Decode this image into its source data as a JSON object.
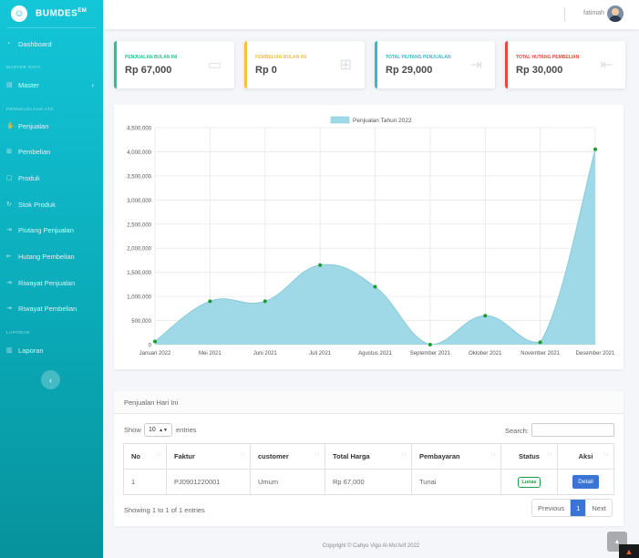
{
  "brand": {
    "logo": "☺",
    "name": "BUMDES",
    "sup": "EM"
  },
  "sidebar": {
    "dashboard": {
      "label": "Dashboard",
      "icon": "dashboard-icon"
    },
    "head_master": "Master Data",
    "master": {
      "label": "Master",
      "icon": "grid-icon"
    },
    "head_tx": "Pengelolaan ATK",
    "items": [
      {
        "label": "Penjualan",
        "icon": "handshake-icon"
      },
      {
        "label": "Pembelian",
        "icon": "cart-icon"
      },
      {
        "label": "Produk",
        "icon": "box-icon"
      },
      {
        "label": "Stok Produk",
        "icon": "refresh-icon"
      },
      {
        "label": "Piutang Penjualan",
        "icon": "sign-in-icon"
      },
      {
        "label": "Hutang Pembelian",
        "icon": "sign-out-icon"
      },
      {
        "label": "Riwayat Penjualan",
        "icon": "sign-in-icon"
      },
      {
        "label": "Riwayat Pembelian",
        "icon": "sign-in-icon"
      }
    ],
    "head_report": "Laporan",
    "report": {
      "label": "Laporan",
      "icon": "chart-icon"
    },
    "toggle": "‹"
  },
  "topbar": {
    "username": "fatimah"
  },
  "cards": [
    {
      "label": "Penjualan Bulan Ini",
      "value": "Rp 67,000",
      "color": "#1cc88a",
      "icon": "wallet-icon"
    },
    {
      "label": "Pembelian Bulan Ini",
      "value": "Rp 0",
      "color": "#f6c23e",
      "icon": "cart-icon"
    },
    {
      "label": "Total Piutang Penjualan",
      "value": "Rp 29,000",
      "color": "#36b9cc",
      "icon": "sign-in-icon"
    },
    {
      "label": "Total Hutang Pembelian",
      "value": "Rp 30,000",
      "color": "#e74a3b",
      "icon": "sign-out-icon"
    }
  ],
  "chart_data": {
    "type": "area",
    "legend": "Penjualan Tahun 2022",
    "legend_position": "top-center",
    "grid": true,
    "categories": [
      "Januari 2022",
      "Mei 2021",
      "Juni 2021",
      "Juli 2021",
      "Agustus 2021",
      "September 2021",
      "Oktober 2021",
      "November 2021",
      "Desember 2021"
    ],
    "values": [
      67000,
      900000,
      900000,
      1650000,
      1200000,
      0,
      600000,
      50000,
      4050000
    ],
    "ylim": [
      0,
      4500000
    ],
    "yticks": [
      0,
      500000,
      1000000,
      1500000,
      2000000,
      2500000,
      3000000,
      3500000,
      4000000,
      4500000
    ],
    "fill_color": "#9fd8e6",
    "point_color": "#1a9e2a"
  },
  "table_panel": {
    "title": "Penjualan Hari Ini",
    "show": "Show",
    "entries_value": "10",
    "entries": "entries",
    "search_label": "Search:",
    "columns": [
      "No",
      "Faktur",
      "customer",
      "Total Harga",
      "Pembayaran",
      "Status",
      "Aksi"
    ],
    "rows": [
      {
        "no": "1",
        "faktur": "PJ0901220001",
        "customer": "Umum",
        "total": "Rp 67,000",
        "pembayaran": "Tunai",
        "status": "Lunas",
        "aksi": "Detail"
      }
    ],
    "info": "Showing 1 to 1 of 1 entries",
    "pager": {
      "prev": "Previous",
      "page": "1",
      "next": "Next"
    }
  },
  "footer": "Copyright © Cahyo Vigo Al-Mu'Arif 2022"
}
